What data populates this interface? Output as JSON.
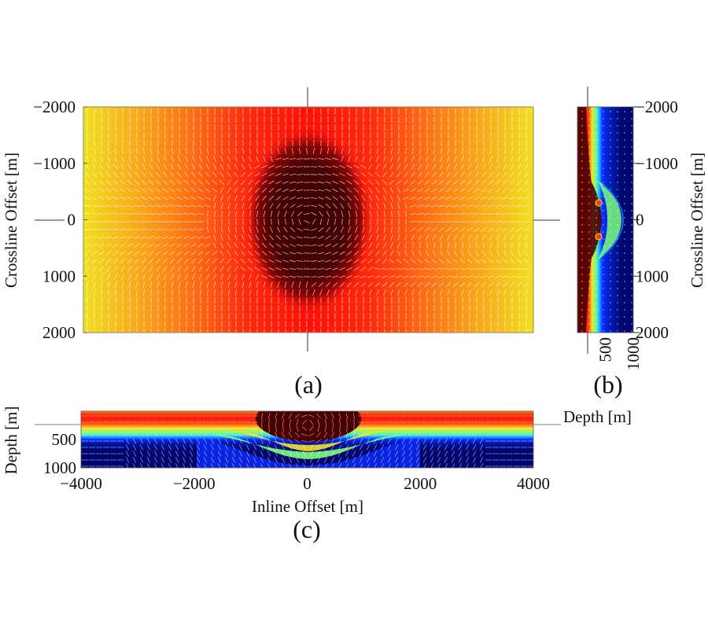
{
  "chart_data": [
    {
      "id": "a",
      "type": "heatmap",
      "panel_label": "(a)",
      "title": "",
      "xlabel": "",
      "ylabel": "Crossline Offset [m]",
      "xlim": [
        -4000,
        4000
      ],
      "ylim": [
        -2000,
        2000
      ],
      "y_inverted": true,
      "yticks": [
        -2000,
        -1000,
        0,
        1000,
        2000
      ],
      "ytick_labels": [
        "−2000",
        "−1000",
        "0",
        "1000",
        "2000"
      ],
      "colormap": "jet",
      "overlay": "vector-field (white arrows)",
      "feature": "dark-red anomaly centered at inline 0, crossline 0, approx. 1400 m wide by 2000 m tall; field grades red to orange to yellow toward x = ±4000",
      "crosshair_at": {
        "x": 0,
        "y": 0
      }
    },
    {
      "id": "b",
      "type": "heatmap",
      "panel_label": "(b)",
      "xlabel": "",
      "ylabel": "Crossline Offset [m]",
      "ylabel_side": "right",
      "xlim": [
        0,
        1000
      ],
      "ylim": [
        -2000,
        2000
      ],
      "y_inverted": true,
      "xticks": [
        500,
        1000
      ],
      "xtick_labels": [
        "500",
        "1000"
      ],
      "yticks": [
        -2000,
        -1000,
        0,
        1000,
        2000
      ],
      "ytick_labels": [
        "−2000",
        "−1000",
        "0",
        "1000",
        "2000"
      ],
      "colormap": "jet",
      "overlay": "vector-field (white dots)",
      "feature": "depth slice: red shallow, green near 400 m, blue deeper; layers bulge deeper near crossline 0"
    },
    {
      "id": "c",
      "type": "heatmap",
      "panel_label": "(c)",
      "xlabel": "Inline Offset [m]",
      "ylabel": "Depth [m]",
      "ylabel_right": "Depth [m]",
      "xlim": [
        -4000,
        4000
      ],
      "ylim": [
        0,
        1000
      ],
      "y_inverted": true,
      "xticks": [
        -4000,
        -2000,
        0,
        2000,
        4000
      ],
      "xtick_labels": [
        "−4000",
        "−2000",
        "0",
        "2000",
        "4000"
      ],
      "yticks": [
        500,
        1000
      ],
      "ytick_labels": [
        "500",
        "1000"
      ],
      "colormap": "jet",
      "overlay": "vector-field (white arrows)",
      "feature": "horizontal layers red-yellow-green-blue; layers dip down to about 800 m between inline −1500 and 1500; dark-red circulation zone near surface at inline 0"
    }
  ],
  "colors": {
    "dark_red": "#4a0000",
    "red": "#ff1a0a",
    "orange": "#ff7a14",
    "yellow": "#f4d21e",
    "green": "#7dff7a",
    "cyan": "#28c8ff",
    "blue": "#0a2cff",
    "navy": "#00066e",
    "arrow": "#ffffff"
  }
}
